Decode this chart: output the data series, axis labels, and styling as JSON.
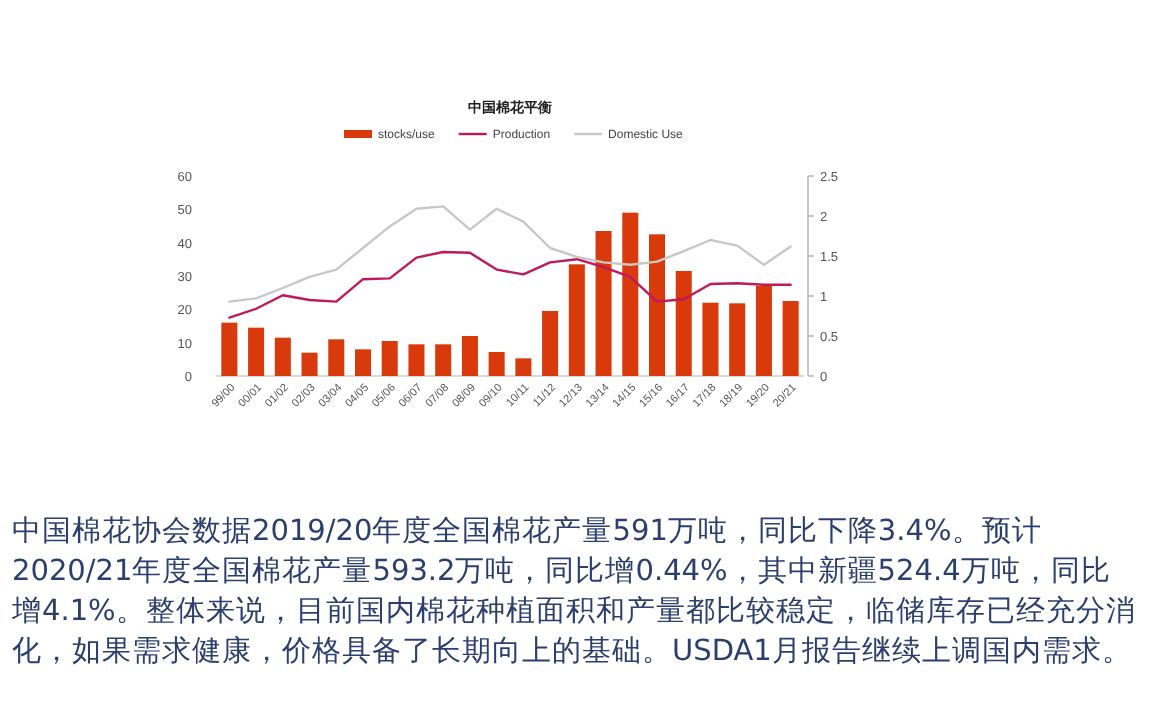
{
  "chart_data": {
    "type": "bar",
    "title": "中国棉花平衡",
    "categories": [
      "99/00",
      "00/01",
      "01/02",
      "02/03",
      "03/04",
      "04/05",
      "05/06",
      "06/07",
      "07/08",
      "08/09",
      "09/10",
      "10/11",
      "11/12",
      "12/13",
      "13/14",
      "14/15",
      "15/16",
      "16/17",
      "17/18",
      "18/19",
      "19/20",
      "20/21"
    ],
    "series": [
      {
        "name": "stocks/use",
        "color": "#d93a0b",
        "values": [
          16,
          14.5,
          11.5,
          7,
          11,
          8,
          10.5,
          9.5,
          9.5,
          12,
          7.2,
          5.3,
          19.5,
          33.5,
          43.5,
          49,
          42.5,
          31.5,
          22,
          21.8,
          27,
          22.5
        ]
      },
      {
        "name": "Production",
        "type": "line",
        "axis": "y2",
        "color": "#c0185a",
        "values": [
          0.73,
          0.84,
          1.01,
          0.95,
          0.93,
          1.21,
          1.22,
          1.48,
          1.55,
          1.54,
          1.33,
          1.27,
          1.42,
          1.46,
          1.36,
          1.24,
          0.93,
          0.96,
          1.15,
          1.16,
          1.14,
          1.14
        ]
      },
      {
        "name": "Domestic Use",
        "type": "line",
        "axis": "y2",
        "color": "#c8c8c8",
        "values": [
          0.93,
          0.97,
          1.1,
          1.24,
          1.33,
          1.6,
          1.87,
          2.09,
          2.12,
          1.83,
          2.09,
          1.93,
          1.6,
          1.49,
          1.42,
          1.39,
          1.43,
          1.56,
          1.7,
          1.63,
          1.39,
          1.62
        ]
      }
    ],
    "ylim": [
      0,
      60
    ],
    "yticks": [
      0,
      10,
      20,
      30,
      40,
      50,
      60
    ],
    "y2lim": [
      0,
      2.5
    ],
    "y2ticks": [
      0,
      0.5,
      1,
      1.5,
      2,
      2.5
    ],
    "legend": "top",
    "annotations": [
      "中国棉花协会数据2019/20年度全国棉花产量591万吨，同比下降3.4%。预计2020/21年度全国棉花产量593.2万吨，同比增0.44%，其中新疆524.4万吨，同比增4.1%。整体来说，目前国内棉花种植面积和产量都比较稳定，临储库存已经充分消化，如果需求健康，价格具备了长期向上的基础。USDA1月报告继续上调国内需求。"
    ]
  }
}
